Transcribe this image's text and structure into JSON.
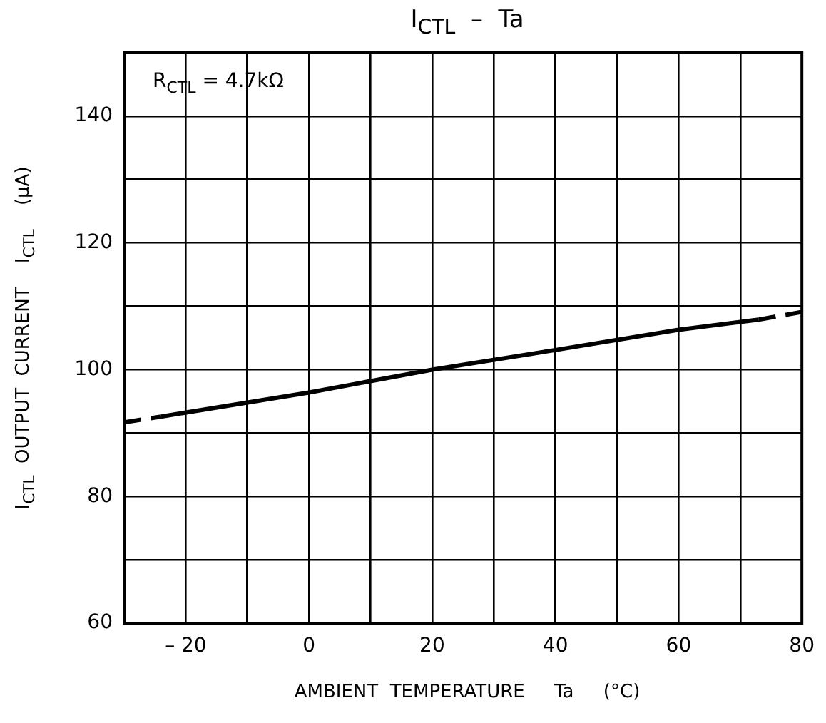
{
  "chart_data": {
    "type": "line",
    "title": "I$_{CTL}$  –  Ta",
    "xlabel": "AMBIENT  TEMPERATURE     Ta     (°C)",
    "ylabel": "I$_{CTL}$  OUTPUT  CURRENT    I$_{CTL}$    (μA)",
    "annotations": [
      "R$_{CTL}$ = 4.7kΩ"
    ],
    "xlim": [
      -30,
      80
    ],
    "xticks": [
      {
        "value": -30,
        "label": null
      },
      {
        "value": -20,
        "label": "– 20"
      },
      {
        "value": -10,
        "label": null
      },
      0,
      {
        "value": 10,
        "label": null
      },
      20,
      {
        "value": 30,
        "label": null
      },
      40,
      {
        "value": 50,
        "label": null
      },
      60,
      {
        "value": 70,
        "label": null
      },
      80
    ],
    "ylim": [
      60,
      150
    ],
    "yticks": [
      60,
      {
        "value": 70,
        "label": null
      },
      80,
      {
        "value": 90,
        "label": null
      },
      100,
      {
        "value": 110,
        "label": null
      },
      120,
      {
        "value": 130,
        "label": null
      },
      140,
      {
        "value": 150,
        "label": null
      }
    ],
    "grid": true,
    "legend": false,
    "marker": "none",
    "series": [
      {
        "color": "#000000",
        "line_style": "dashed",
        "x": [
          -30,
          -24
        ],
        "values": [
          91.7,
          92.6
        ]
      },
      {
        "color": "#000000",
        "line_style": "solid",
        "x": [
          -24,
          0,
          20,
          40,
          60,
          73
        ],
        "values": [
          92.6,
          96.4,
          100,
          103.1,
          106.3,
          107.9
        ]
      },
      {
        "color": "#000000",
        "line_style": "dashed",
        "x": [
          73,
          80
        ],
        "values": [
          107.9,
          109.1
        ]
      }
    ]
  }
}
